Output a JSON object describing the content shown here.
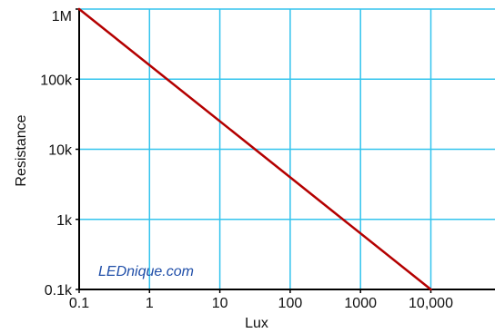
{
  "chart_data": {
    "type": "line",
    "x_scale": "log",
    "y_scale": "log",
    "x_ticks": [
      0.1,
      1,
      10,
      100,
      1000,
      10000
    ],
    "x_tick_labels": [
      "0.1",
      "1",
      "10",
      "100",
      "1000",
      "10,000"
    ],
    "y_ticks": [
      100,
      1000,
      10000,
      100000,
      1000000
    ],
    "y_tick_labels": [
      "0.1k",
      "1k",
      "10k",
      "100k",
      "1M"
    ],
    "xlim": [
      0.1,
      30000
    ],
    "ylim": [
      100,
      1000000
    ],
    "xlabel": "Lux",
    "ylabel": "Resistance",
    "grid": true,
    "series": [
      {
        "x": [
          0.1,
          10000
        ],
        "y": [
          1000000,
          100
        ]
      }
    ],
    "annotation": "LEDnique.com",
    "colors": {
      "grid": "#33c4ee",
      "axis": "#000000",
      "line": "#b40000"
    }
  }
}
